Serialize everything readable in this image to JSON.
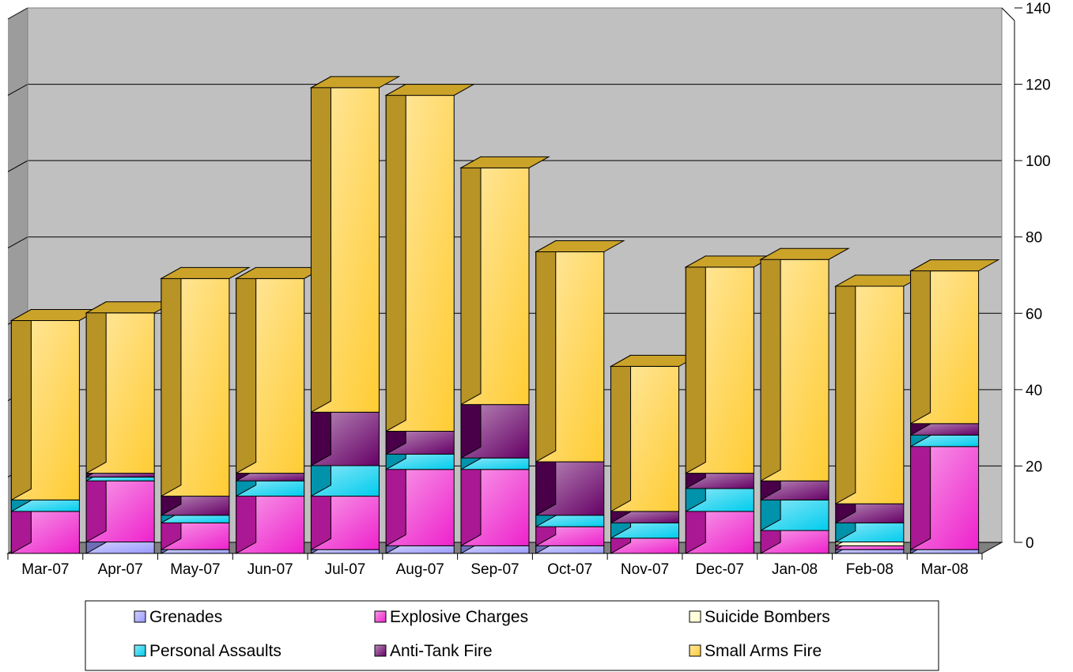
{
  "chart_data": {
    "type": "bar",
    "stacked": true,
    "three_d": true,
    "title": "",
    "xlabel": "",
    "ylabel": "",
    "ylim": [
      0,
      140
    ],
    "yticks": [
      0,
      20,
      40,
      60,
      80,
      100,
      120,
      140
    ],
    "y_axis_side": "right",
    "grid": true,
    "legend_position": "bottom",
    "categories": [
      "Mar-07",
      "Apr-07",
      "May-07",
      "Jun-07",
      "Jul-07",
      "Aug-07",
      "Sep-07",
      "Oct-07",
      "Nov-07",
      "Dec-07",
      "Jan-08",
      "Feb-08",
      "Mar-08"
    ],
    "series": [
      {
        "name": "Grenades",
        "color": "#9999ff",
        "values": [
          0,
          3,
          1,
          0,
          1,
          2,
          2,
          2,
          0,
          0,
          0,
          1,
          1
        ]
      },
      {
        "name": "Explosive Charges",
        "color": "#ee22cc",
        "values": [
          11,
          16,
          7,
          15,
          14,
          20,
          20,
          5,
          4,
          11,
          6,
          1,
          27
        ]
      },
      {
        "name": "Suicide Bombers",
        "color": "#ffffcc",
        "values": [
          0,
          0,
          0,
          0,
          0,
          0,
          0,
          0,
          0,
          0,
          0,
          1,
          0
        ]
      },
      {
        "name": "Personal Assaults",
        "color": "#00ccee",
        "values": [
          3,
          1,
          2,
          4,
          8,
          4,
          3,
          3,
          4,
          6,
          8,
          5,
          3
        ]
      },
      {
        "name": "Anti-Tank Fire",
        "color": "#660066",
        "values": [
          0,
          1,
          5,
          2,
          14,
          6,
          14,
          14,
          3,
          4,
          5,
          5,
          3
        ]
      },
      {
        "name": "Small Arms Fire",
        "color": "#ffcc33",
        "values": [
          47,
          42,
          57,
          51,
          85,
          88,
          62,
          55,
          38,
          54,
          58,
          57,
          40
        ]
      }
    ]
  }
}
